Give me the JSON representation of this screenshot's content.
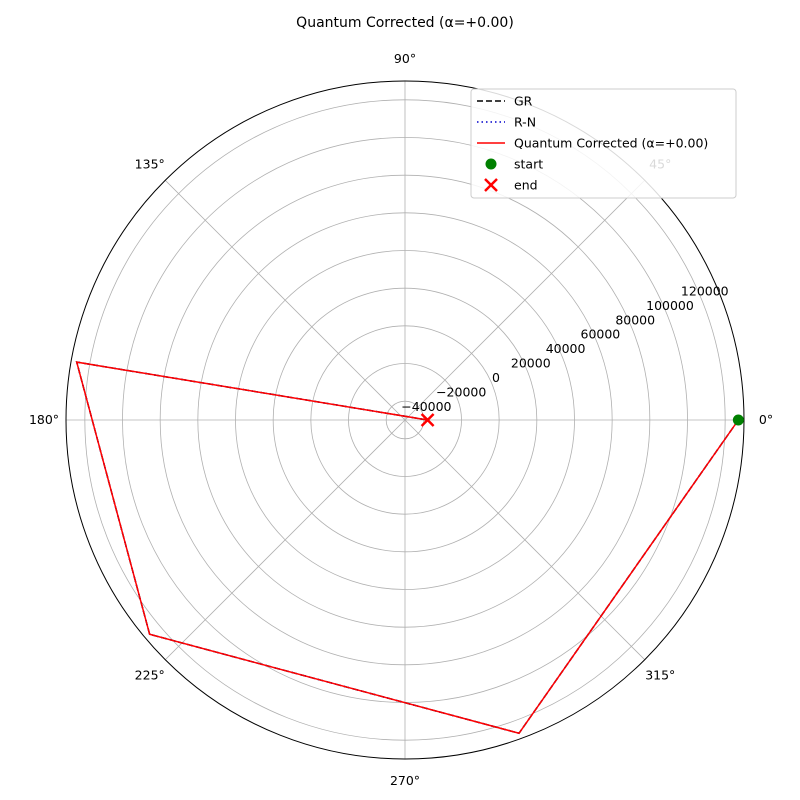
{
  "chart_data": {
    "type": "polar-line",
    "title": "Quantum Corrected (α=+0.00)",
    "theta_ticks": [
      "0°",
      "45°",
      "90°",
      "135°",
      "180°",
      "225°",
      "270°",
      "315°"
    ],
    "theta_tick_values": [
      0,
      45,
      90,
      135,
      180,
      225,
      270,
      315
    ],
    "r_ticks": [
      "−40000",
      "−20000",
      "0",
      "20000",
      "40000",
      "60000",
      "80000",
      "100000",
      "120000"
    ],
    "r_tick_values": [
      -40000,
      -20000,
      0,
      20000,
      40000,
      60000,
      80000,
      100000,
      120000
    ],
    "rlim": [
      -50000,
      130000
    ],
    "rlabel_angle_deg": 22.5,
    "grid": true,
    "legend_position": "top-right",
    "series": [
      {
        "name": "GR",
        "color": "#000000",
        "style": "dashed",
        "theta_deg": [
          0,
          290,
          220,
          170,
          0
        ],
        "r": [
          127000,
          127000,
          127000,
          127000,
          -38000
        ]
      },
      {
        "name": "R-N",
        "color": "#0000cc",
        "style": "dotted",
        "theta_deg": [
          0,
          290,
          220,
          170,
          0
        ],
        "r": [
          127000,
          127000,
          127000,
          127000,
          -38000
        ]
      },
      {
        "name": "Quantum Corrected (α=+0.00)",
        "color": "#ff0000",
        "style": "solid",
        "theta_deg": [
          0,
          290,
          220,
          170,
          0
        ],
        "r": [
          127000,
          127000,
          127000,
          127000,
          -38000
        ]
      }
    ],
    "markers": [
      {
        "name": "start",
        "color": "#008000",
        "shape": "circle",
        "theta_deg": 0,
        "r": 127000
      },
      {
        "name": "end",
        "color": "#ff0000",
        "shape": "x",
        "theta_deg": 0,
        "r": -38000
      }
    ]
  }
}
